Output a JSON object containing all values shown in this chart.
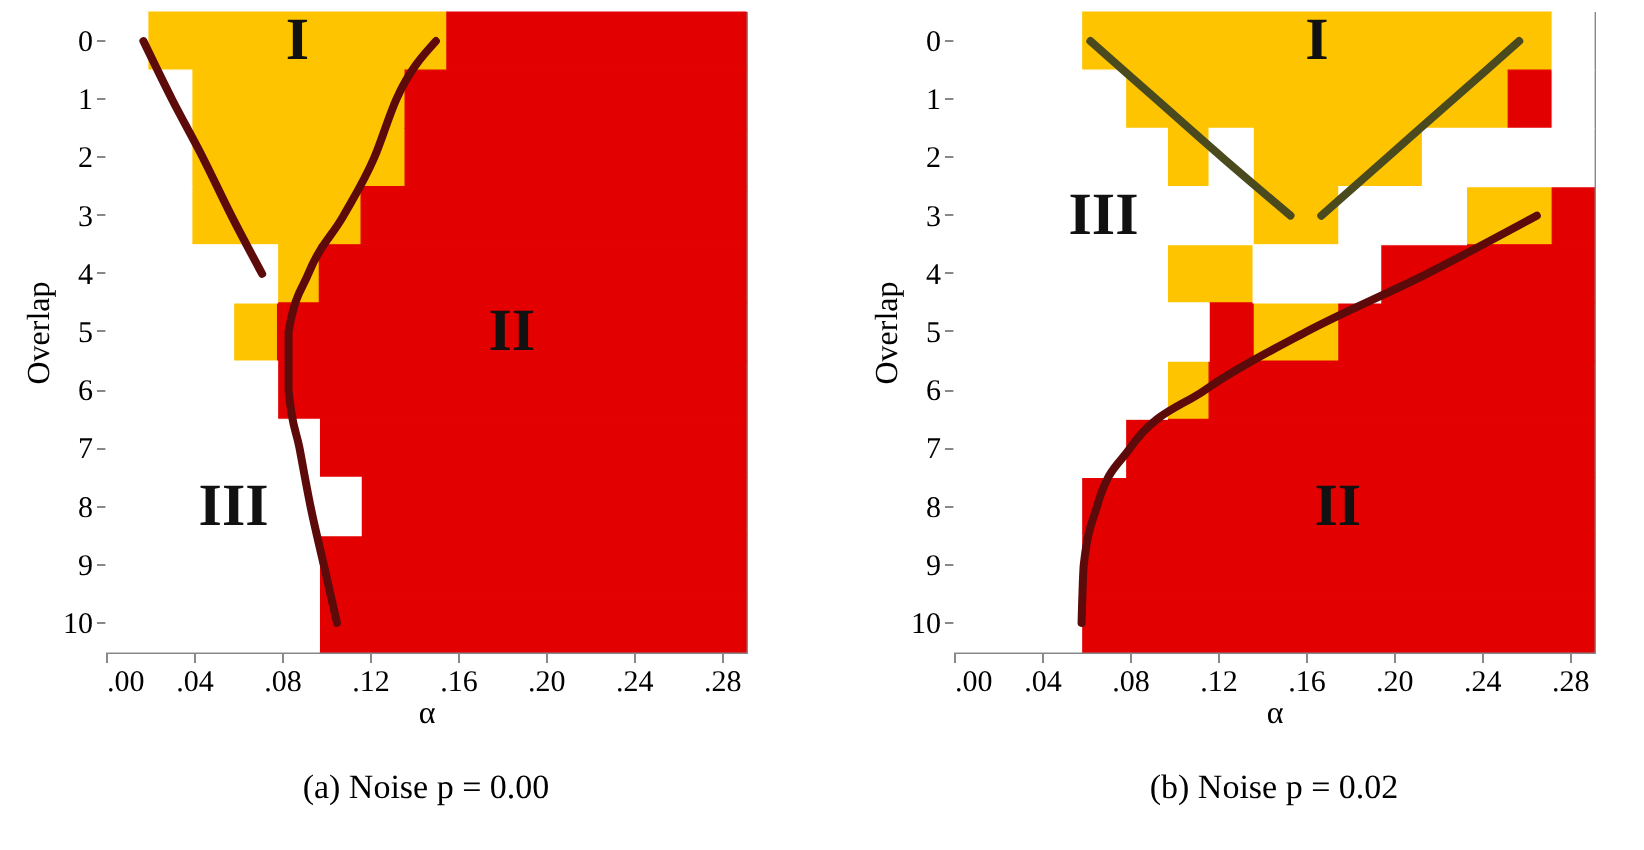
{
  "chart_data": [
    {
      "type": "bar",
      "orientation": "horizontal",
      "title": "(a) Noise p = 0.00",
      "xlabel": "α",
      "ylabel": "Overlap",
      "categories": [
        "0",
        "1",
        "2",
        "3",
        "4",
        "5",
        "6",
        "7",
        "8",
        "9",
        "10"
      ],
      "xlim": [
        0,
        0.291
      ],
      "xticks": [
        {
          "value": 0,
          "label": ".00"
        },
        {
          "value": 0.04,
          "label": ".04"
        },
        {
          "value": 0.08,
          "label": ".08"
        },
        {
          "value": 0.12,
          "label": ".12"
        },
        {
          "value": 0.16,
          "label": ".16"
        },
        {
          "value": 0.2,
          "label": ".20"
        },
        {
          "value": 0.24,
          "label": ".24"
        },
        {
          "value": 0.28,
          "label": ".28"
        }
      ],
      "series": [
        {
          "name": "I",
          "color": "#ffc400",
          "base": [
            0.019,
            0.039,
            0.039,
            0.039,
            0.078,
            0.058,
            null,
            null,
            null,
            null,
            null
          ],
          "values": [
            0.136,
            0.097,
            0.097,
            0.077,
            0.019,
            0.02,
            null,
            null,
            null,
            null,
            null
          ]
        },
        {
          "name": "II",
          "color": "#e30000",
          "base": [
            0.155,
            0.136,
            0.136,
            0.116,
            0.097,
            0.078,
            0.078,
            0.097,
            0.116,
            0.097,
            0.097
          ],
          "values": [
            0.136,
            0.155,
            0.155,
            0.175,
            0.194,
            0.213,
            0.213,
            0.194,
            0.175,
            0.194,
            0.194
          ]
        },
        {
          "name": "III",
          "color": "#ffffff",
          "base": [
            0,
            0,
            0,
            0,
            0,
            0,
            0,
            0,
            0,
            0,
            0
          ],
          "values": [
            0.019,
            0.039,
            0.039,
            0.039,
            0.078,
            0.058,
            0.078,
            0.097,
            0.116,
            0.097,
            0.097
          ]
        },
        {
          "type": "line",
          "color": "#5c0a0a",
          "values": [
            0.017,
            0.03,
            0.044,
            0.057,
            0.071,
            null,
            null,
            null,
            null,
            null,
            null
          ]
        },
        {
          "type": "line",
          "color": "#5c0a0a",
          "values": [
            0.15,
            0.132,
            0.122,
            0.108,
            0.092,
            0.083,
            0.083,
            0.088,
            0.093,
            0.099,
            0.105
          ]
        }
      ]
    },
    {
      "type": "bar",
      "orientation": "horizontal",
      "title": "(b) Noise p = 0.02",
      "xlabel": "α",
      "ylabel": "Overlap",
      "categories": [
        "0",
        "1",
        "2",
        "3",
        "4",
        "5",
        "6",
        "7",
        "8",
        "9",
        "10"
      ],
      "xlim": [
        0,
        0.291
      ],
      "xticks": [
        {
          "value": 0,
          "label": ".00"
        },
        {
          "value": 0.04,
          "label": ".04"
        },
        {
          "value": 0.08,
          "label": ".08"
        },
        {
          "value": 0.12,
          "label": ".12"
        },
        {
          "value": 0.16,
          "label": ".16"
        },
        {
          "value": 0.2,
          "label": ".20"
        },
        {
          "value": 0.24,
          "label": ".24"
        },
        {
          "value": 0.28,
          "label": ".28"
        }
      ],
      "series": [
        {
          "name": "I",
          "color": "#ffc400",
          "base": [
            0.058,
            0.078,
            0.097,
            0.136,
            0.097,
            0.136,
            0.097,
            null,
            null,
            null,
            null
          ],
          "values": [
            0.214,
            0.174,
            0.019,
            0.039,
            0.039,
            0.039,
            0.019,
            null,
            null,
            null,
            null
          ]
        },
        {
          "color": "#ffc400",
          "base": [
            null,
            null,
            0.136,
            0.233,
            null,
            null,
            null,
            null,
            null,
            null,
            null
          ],
          "values": [
            null,
            null,
            0.077,
            0.039,
            null,
            null,
            null,
            null,
            null,
            null,
            null
          ]
        },
        {
          "name": "II",
          "color": "#e30000",
          "base": [
            null,
            0.252,
            null,
            0.272,
            0.194,
            0.116,
            0.116,
            0.078,
            0.058,
            0.058,
            0.058
          ],
          "values": [
            null,
            0.02,
            null,
            0.019,
            0.097,
            0.02,
            0.175,
            0.213,
            0.233,
            0.233,
            0.233
          ]
        },
        {
          "color": "#e30000",
          "base": [
            null,
            null,
            null,
            null,
            null,
            0.175,
            null,
            null,
            null,
            null,
            null
          ],
          "values": [
            null,
            null,
            null,
            null,
            null,
            0.116,
            null,
            null,
            null,
            null,
            null
          ]
        },
        {
          "name": "III",
          "color": "#ffffff",
          "base": [
            0,
            0,
            0,
            0,
            0,
            0,
            0,
            0,
            0,
            0,
            0
          ],
          "values": [
            0.058,
            0.078,
            0.097,
            0.136,
            0.097,
            0.116,
            0.097,
            0.078,
            0.058,
            0.058,
            0.058
          ]
        },
        {
          "color": "#ffffff",
          "base": [
            0.272,
            0.272,
            0.116,
            0.175,
            0.136,
            null,
            null,
            null,
            null,
            null,
            null
          ],
          "values": [
            0.019,
            0.019,
            0.02,
            0.058,
            0.058,
            null,
            null,
            null,
            null,
            null,
            null
          ]
        },
        {
          "color": "#ffffff",
          "base": [
            null,
            null,
            0.213,
            null,
            null,
            null,
            null,
            null,
            null,
            null,
            null
          ],
          "values": [
            null,
            null,
            0.078,
            null,
            null,
            null,
            null,
            null,
            null,
            null,
            null
          ]
        },
        {
          "type": "line",
          "color": "#4a4a1e",
          "values": [
            0.062,
            0.092,
            0.122,
            0.153,
            null,
            null,
            null,
            null,
            null,
            null,
            null
          ]
        },
        {
          "type": "line",
          "color": "#4a4a1e",
          "values": [
            0.257,
            0.227,
            0.197,
            0.167,
            null,
            null,
            null,
            null,
            null,
            null,
            null
          ]
        },
        {
          "type": "line",
          "color": "#5c0a0a",
          "values": [
            null,
            null,
            null,
            0.265,
            0.215,
            0.16,
            0.114,
            0.08,
            0.065,
            0.059,
            0.058
          ]
        }
      ]
    }
  ]
}
